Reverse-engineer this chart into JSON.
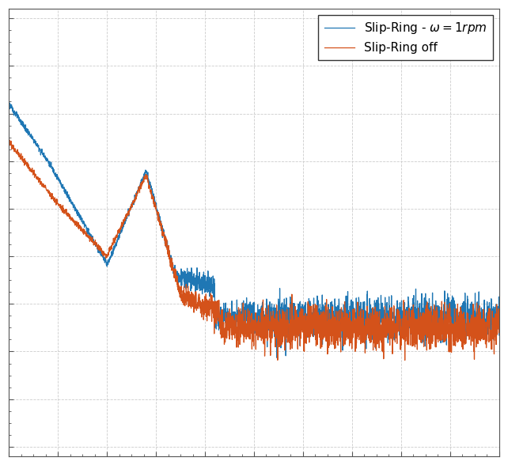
{
  "title": "",
  "xlabel": "",
  "ylabel": "",
  "legend_labels": [
    "Slip-Ring - $\\omega = 1rpm$",
    "Slip-Ring off"
  ],
  "line_color_blue": "#1f77b4",
  "line_color_orange": "#d4521a",
  "figsize": [
    6.42,
    5.88
  ],
  "dpi": 100,
  "background_color": "#ffffff",
  "axes_bg": "#ffffff",
  "grid_color": "#cccccc",
  "grid_style": "--",
  "grid_alpha": 1.0,
  "legend_fontsize": 11
}
